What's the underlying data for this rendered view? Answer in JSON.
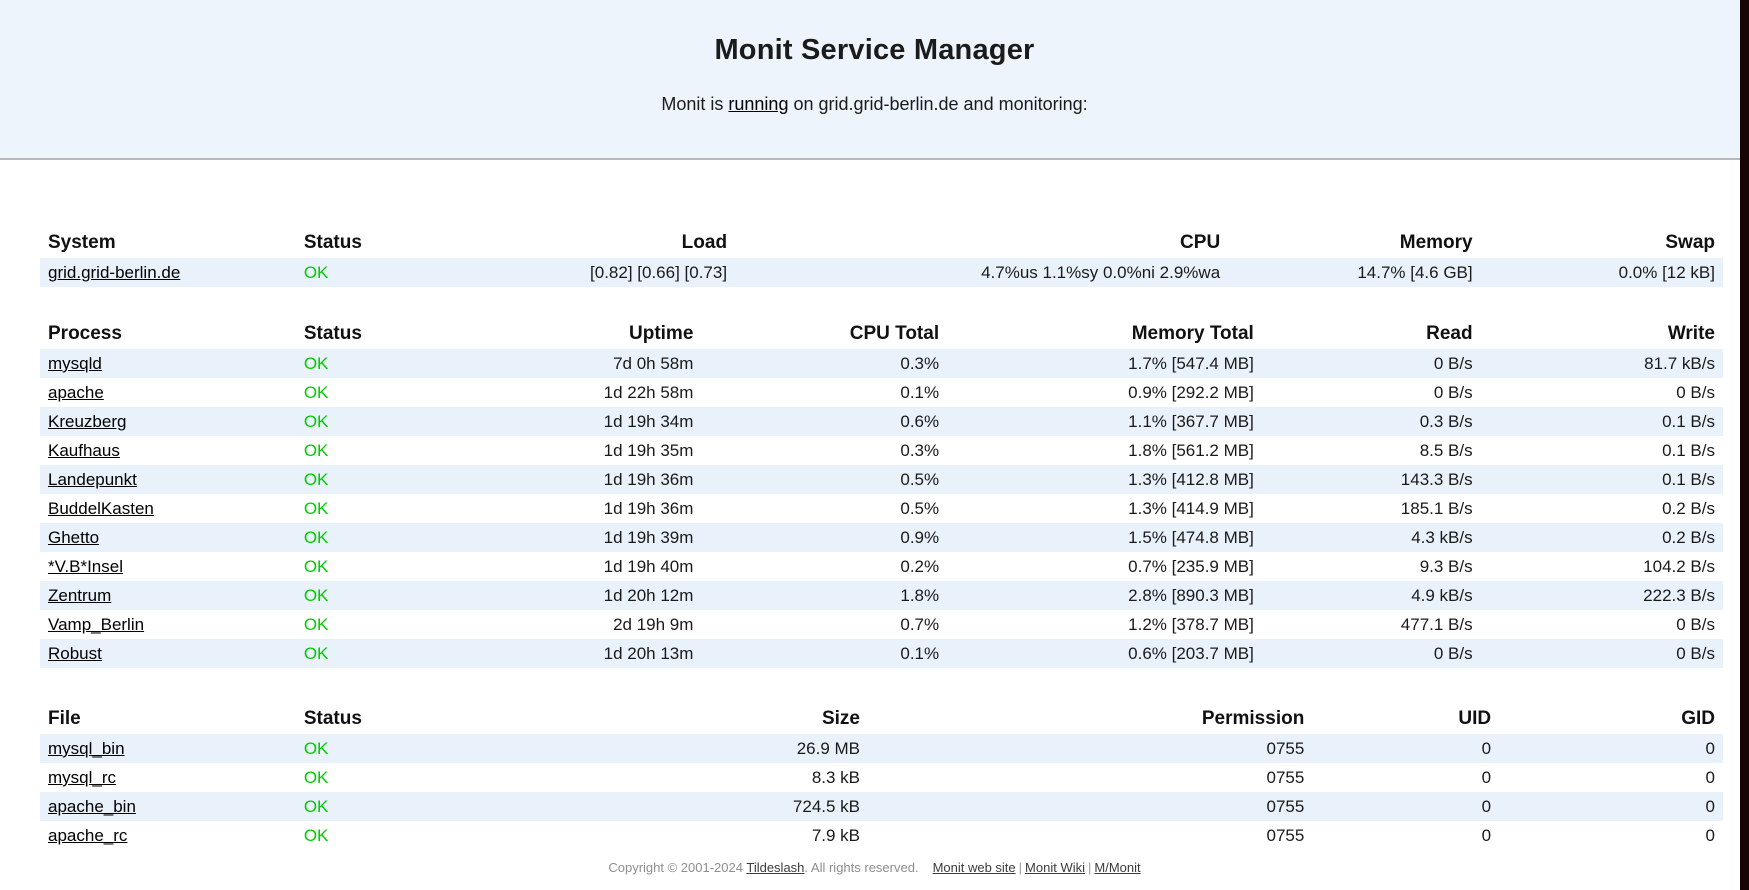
{
  "page": {
    "title": "Monit Service Manager",
    "subtitle_prefix": "Monit is ",
    "subtitle_link": "running",
    "subtitle_suffix": " on grid.grid-berlin.de and monitoring:"
  },
  "colors": {
    "ok_green": "#00cc00",
    "row_stripe": "#e9f2fb",
    "banner_background": "#edf4fc"
  },
  "system_table": {
    "headers": [
      "System",
      "Status",
      "Load",
      "CPU",
      "Memory",
      "Swap"
    ],
    "rows": [
      [
        "grid.grid-berlin.de",
        "OK",
        "[0.82] [0.66] [0.73]",
        "4.7%us 1.1%sy 0.0%ni 2.9%wa",
        "14.7% [4.6 GB]",
        "0.0% [12 kB]"
      ]
    ]
  },
  "process_table": {
    "headers": [
      "Process",
      "Status",
      "Uptime",
      "CPU Total",
      "Memory Total",
      "Read",
      "Write"
    ],
    "rows": [
      [
        "mysqld",
        "OK",
        "7d 0h 58m",
        "0.3%",
        "1.7% [547.4 MB]",
        "0 B/s",
        "81.7 kB/s"
      ],
      [
        "apache",
        "OK",
        "1d 22h 58m",
        "0.1%",
        "0.9% [292.2 MB]",
        "0 B/s",
        "0 B/s"
      ],
      [
        "Kreuzberg",
        "OK",
        "1d 19h 34m",
        "0.6%",
        "1.1% [367.7 MB]",
        "0.3 B/s",
        "0.1 B/s"
      ],
      [
        "Kaufhaus",
        "OK",
        "1d 19h 35m",
        "0.3%",
        "1.8% [561.2 MB]",
        "8.5 B/s",
        "0.1 B/s"
      ],
      [
        "Landepunkt",
        "OK",
        "1d 19h 36m",
        "0.5%",
        "1.3% [412.8 MB]",
        "143.3 B/s",
        "0.1 B/s"
      ],
      [
        "BuddelKasten",
        "OK",
        "1d 19h 36m",
        "0.5%",
        "1.3% [414.9 MB]",
        "185.1 B/s",
        "0.2 B/s"
      ],
      [
        "Ghetto",
        "OK",
        "1d 19h 39m",
        "0.9%",
        "1.5% [474.8 MB]",
        "4.3 kB/s",
        "0.2 B/s"
      ],
      [
        "*V.B*Insel",
        "OK",
        "1d 19h 40m",
        "0.2%",
        "0.7% [235.9 MB]",
        "9.3 B/s",
        "104.2 B/s"
      ],
      [
        "Zentrum",
        "OK",
        "1d 20h 12m",
        "1.8%",
        "2.8% [890.3 MB]",
        "4.9 kB/s",
        "222.3 B/s"
      ],
      [
        "Vamp_Berlin",
        "OK",
        "2d 19h 9m",
        "0.7%",
        "1.2% [378.7 MB]",
        "477.1 B/s",
        "0 B/s"
      ],
      [
        "Robust",
        "OK",
        "1d 20h 13m",
        "0.1%",
        "0.6% [203.7 MB]",
        "0 B/s",
        "0 B/s"
      ]
    ]
  },
  "file_table": {
    "headers": [
      "File",
      "Status",
      "Size",
      "Permission",
      "UID",
      "GID"
    ],
    "rows": [
      [
        "mysql_bin",
        "OK",
        "26.9 MB",
        "0755",
        "0",
        "0"
      ],
      [
        "mysql_rc",
        "OK",
        "8.3 kB",
        "0755",
        "0",
        "0"
      ],
      [
        "apache_bin",
        "OK",
        "724.5 kB",
        "0755",
        "0",
        "0"
      ],
      [
        "apache_rc",
        "OK",
        "7.9 kB",
        "0755",
        "0",
        "0"
      ]
    ]
  },
  "footer": {
    "copyright_prefix": "Copyright © 2001-2024 ",
    "tildeslash_link": "Tildeslash",
    "copyright_suffix": ". All rights reserved.",
    "links": [
      "Monit web site",
      "Monit Wiki",
      "M/Monit"
    ],
    "separator": "|"
  }
}
